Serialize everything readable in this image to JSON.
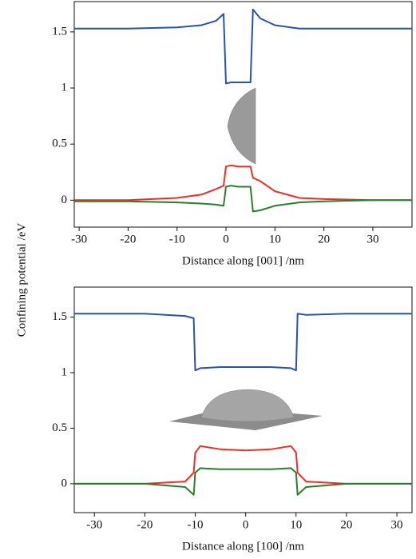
{
  "chart_data": [
    {
      "type": "line",
      "ylabel": "Confining potential /eV",
      "xlabel": "Distance along [001] /nm",
      "xlim": [
        -31,
        38
      ],
      "ylim": [
        -0.24,
        1.77
      ],
      "xticks": [
        -30,
        -20,
        -10,
        0,
        10,
        20,
        30
      ],
      "yticks": [
        0,
        0.5,
        1.0,
        1.5
      ],
      "x": [
        -31,
        -20,
        -10,
        -5,
        -2,
        -0.5,
        0,
        1,
        2.5,
        4,
        5,
        5.5,
        7,
        10,
        15,
        20,
        30,
        38
      ],
      "series": [
        {
          "color": "#2a52a8",
          "values": [
            1.53,
            1.53,
            1.54,
            1.56,
            1.6,
            1.66,
            1.04,
            1.05,
            1.05,
            1.05,
            1.05,
            1.7,
            1.62,
            1.56,
            1.53,
            1.53,
            1.53,
            1.53
          ]
        },
        {
          "color": "#e8302c",
          "values": [
            0,
            0,
            0.02,
            0.05,
            0.1,
            0.13,
            0.3,
            0.31,
            0.3,
            0.3,
            0.3,
            0.2,
            0.17,
            0.08,
            0.02,
            0.01,
            0,
            0
          ]
        },
        {
          "color": "#2e7d2e",
          "values": [
            -0.01,
            -0.01,
            -0.02,
            -0.03,
            -0.04,
            -0.05,
            0.12,
            0.13,
            0.12,
            0.12,
            0.12,
            -0.1,
            -0.09,
            -0.05,
            -0.02,
            -0.01,
            0,
            0
          ]
        }
      ]
    },
    {
      "type": "line",
      "xlabel": "Distance along [100] /nm",
      "xlim": [
        -34,
        33
      ],
      "ylim": [
        -0.26,
        1.77
      ],
      "xticks": [
        -30,
        -20,
        -10,
        0,
        10,
        20,
        30
      ],
      "yticks": [
        0,
        0.5,
        1.0,
        1.5
      ],
      "x": [
        -34,
        -20,
        -12,
        -10.3,
        -10,
        -9,
        -5,
        0,
        5,
        9,
        10,
        10.3,
        12,
        20,
        33
      ],
      "series": [
        {
          "color": "#2a52a8",
          "values": [
            1.53,
            1.53,
            1.51,
            1.49,
            1.02,
            1.04,
            1.05,
            1.05,
            1.05,
            1.04,
            1.02,
            1.53,
            1.52,
            1.53,
            1.53
          ]
        },
        {
          "color": "#e8302c",
          "values": [
            0,
            0,
            0.02,
            0.1,
            0.28,
            0.34,
            0.31,
            0.3,
            0.31,
            0.34,
            0.28,
            0.1,
            0.02,
            0,
            0
          ]
        },
        {
          "color": "#2e7d2e",
          "values": [
            0,
            0,
            -0.03,
            -0.1,
            0.1,
            0.14,
            0.13,
            0.13,
            0.13,
            0.14,
            0.1,
            -0.1,
            -0.03,
            0,
            0
          ]
        }
      ]
    }
  ]
}
